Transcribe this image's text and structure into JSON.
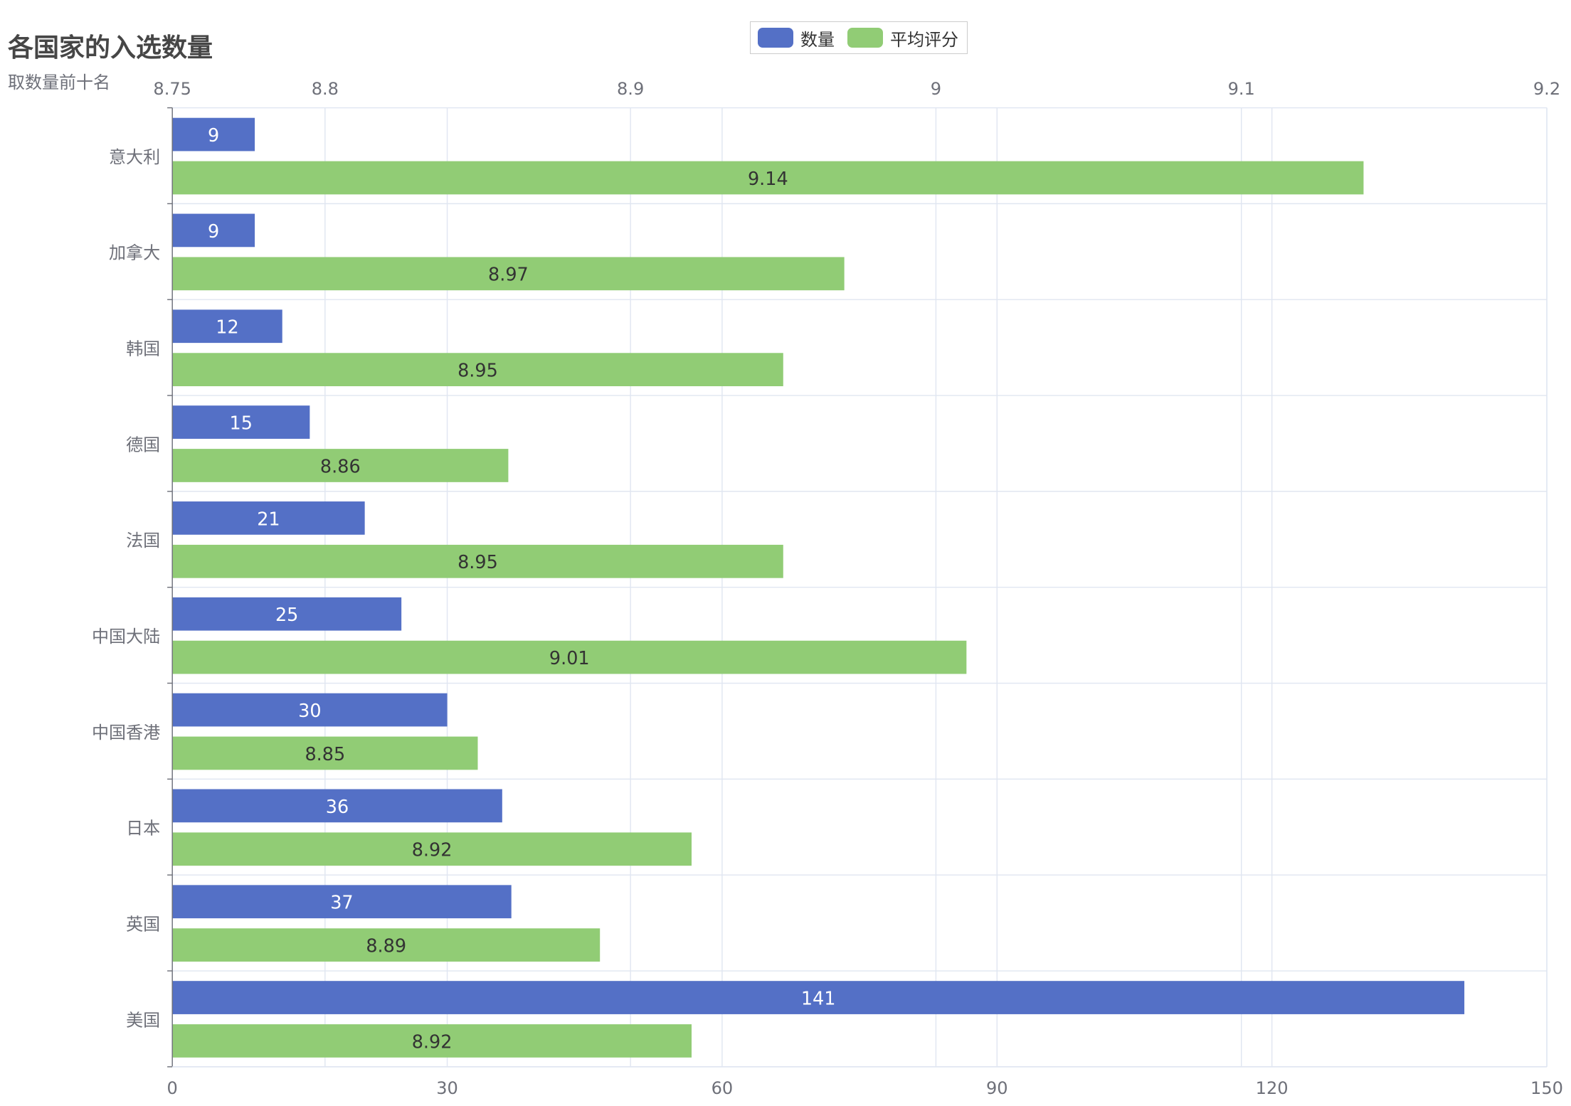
{
  "chart_data": {
    "type": "bar",
    "orientation": "horizontal",
    "title": "各国家的入选数量",
    "subtitle": "取数量前十名",
    "categories": [
      "意大利",
      "加拿大",
      "韩国",
      "德国",
      "法国",
      "中国大陆",
      "中国香港",
      "日本",
      "英国",
      "美国"
    ],
    "series": [
      {
        "name": "数量",
        "color": "#5470c6",
        "axis": "bottom",
        "values": [
          9,
          9,
          12,
          15,
          21,
          25,
          30,
          36,
          37,
          141
        ],
        "labels": [
          "9",
          "9",
          "12",
          "15",
          "21",
          "25",
          "30",
          "36",
          "37",
          "141"
        ]
      },
      {
        "name": "平均评分",
        "color": "#91cc75",
        "axis": "top",
        "values": [
          9.14,
          8.97,
          8.95,
          8.86,
          8.95,
          9.01,
          8.85,
          8.92,
          8.89,
          8.92
        ],
        "labels": [
          "9.14",
          "8.97",
          "8.95",
          "8.86",
          "8.95",
          "9.01",
          "8.85",
          "8.92",
          "8.89",
          "8.92"
        ]
      }
    ],
    "bottom_axis": {
      "min": 0,
      "max": 150,
      "ticks": [
        0,
        30,
        60,
        90,
        120,
        150
      ],
      "tick_labels": [
        "0",
        "30",
        "60",
        "90",
        "120",
        "150"
      ]
    },
    "top_axis": {
      "min": 8.75,
      "max": 9.2,
      "ticks": [
        8.75,
        8.8,
        8.9,
        9.0,
        9.1,
        9.2
      ],
      "tick_labels": [
        "8.75",
        "8.8",
        "8.9",
        "9",
        "9.1",
        "9.2"
      ]
    },
    "grid": true,
    "legend_position": "top-center"
  },
  "colors": {
    "grid": "#e0e6f1",
    "axis_line": "#6e7079",
    "tick_text": "#6e7079",
    "label_light": "#ffffff",
    "label_dark": "#333333"
  }
}
